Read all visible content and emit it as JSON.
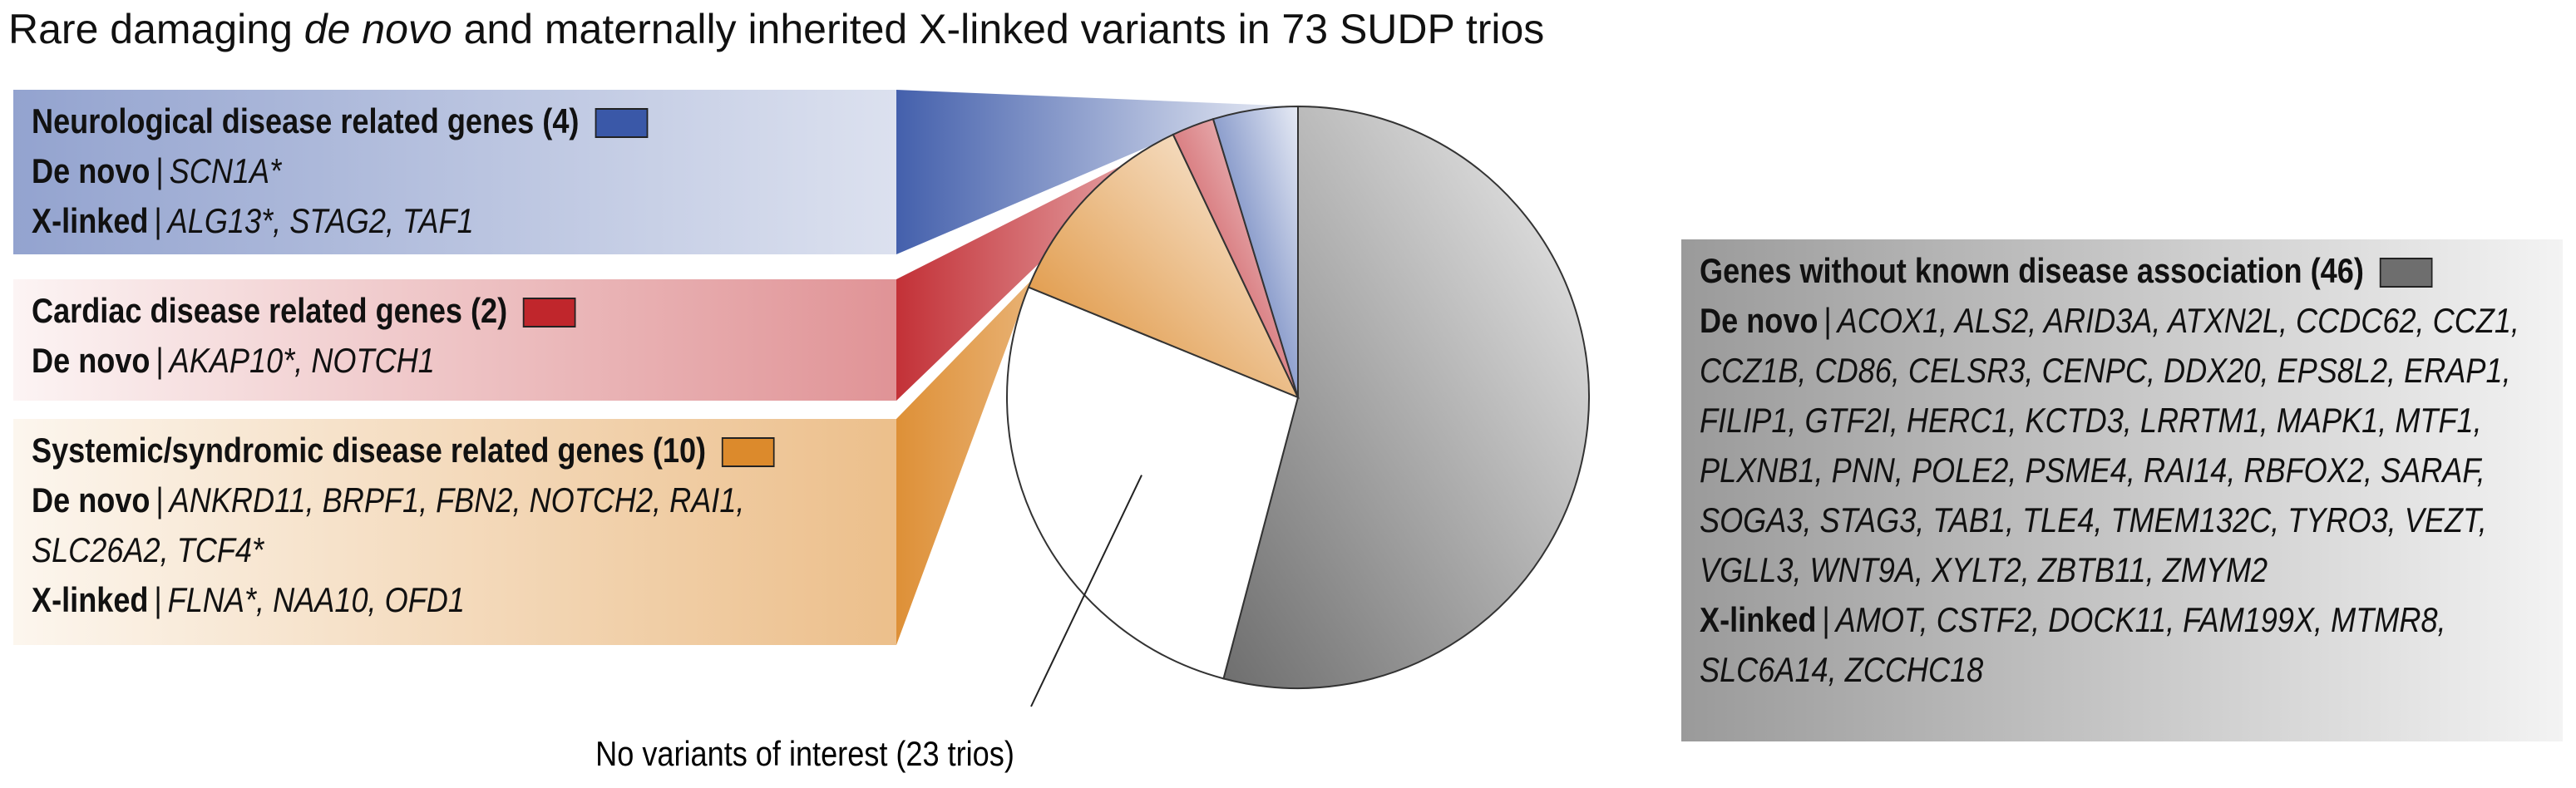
{
  "title_parts": [
    "Rare damaging ",
    "de novo",
    " and maternally inherited X-linked variants in 73 SUDP trios"
  ],
  "separator": "|",
  "chart_data": {
    "type": "pie",
    "categories": [
      "Genes without known disease association (46)",
      "No variants of interest (23 trios)",
      "Systemic/syndromic disease related genes (10)",
      "Cardiac disease related genes (2)",
      "Neurological disease related genes (4)"
    ],
    "values": [
      46,
      23,
      10,
      2,
      4
    ],
    "colors": [
      "#6e6e6e",
      "#ffffff",
      "#dc8a2c",
      "#c0262c",
      "#3a58a8"
    ]
  },
  "gene_lists": {
    "unknown": [
      {
        "label": "De novo",
        "genes": "ACOX1, ALS2, ARID3A, ATXN2L, CCDC62, CCZ1, CCZ1B, CD86, CELSR3, CENPC, DDX20, EPS8L2, ERAP1, FILIP1, GTF2I, HERC1, KCTD3, LRRTM1, MAPK1, MTF1, PLXNB1, PNN, POLE2, PSME4, RAI14, RBFOX2, SARAF, SOGA3, STAG3, TAB1, TLE4, TMEM132C, TYRO3, VEZT, VGLL3, WNT9A, XYLT2, ZBTB11, ZMYM2"
      },
      {
        "label": "X-linked",
        "genes": "AMOT, CSTF2, DOCK11, FAM199X, MTMR8, SLC6A14, ZCCHC18"
      }
    ],
    "systemic": [
      {
        "label": "De novo",
        "genes": "ANKRD11, BRPF1, FBN2, NOTCH2, RAI1, SLC26A2, TCF4*"
      },
      {
        "label": "X-linked",
        "genes": "FLNA*, NAA10, OFD1"
      }
    ],
    "cardiac": [
      {
        "label": "De novo",
        "genes": "AKAP10*, NOTCH1"
      }
    ],
    "neurological": [
      {
        "label": "De novo",
        "genes": "SCN1A*"
      },
      {
        "label": "X-linked",
        "genes": "ALG13*, STAG2, TAF1"
      }
    ]
  }
}
